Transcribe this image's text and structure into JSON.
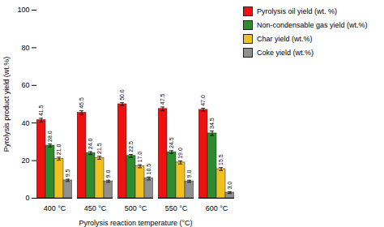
{
  "chart_data": {
    "type": "bar",
    "categories": [
      "400 °C",
      "450 °C",
      "500 °C",
      "550 °C",
      "600 °C"
    ],
    "series": [
      {
        "name": "Pyrolysis oil yield (wt. %)",
        "color": "#ee1111",
        "values": [
          41.5,
          45.5,
          50.0,
          47.5,
          47.0
        ],
        "value_labels": [
          "41.5",
          "45.5",
          "50.0",
          "47.5",
          "47.0"
        ],
        "errors": [
          1.0,
          1.0,
          0.8,
          1.0,
          0.8
        ]
      },
      {
        "name": "Non-condensable gas yield (wt.%)",
        "color": "#2e8b2e",
        "values": [
          28.0,
          24.0,
          22.5,
          24.5,
          34.5
        ],
        "value_labels": [
          "28.0",
          "24.0",
          "22.5",
          "24.5",
          "34.5"
        ],
        "errors": [
          0.8,
          0.8,
          0.8,
          0.8,
          1.2
        ]
      },
      {
        "name": "Char yield (wt.%)",
        "color": "#f0c020",
        "values": [
          21.0,
          21.5,
          17.0,
          19.0,
          15.5
        ],
        "value_labels": [
          "21.0",
          "21.5",
          "17.0",
          "19.0",
          "15.5"
        ],
        "errors": [
          0.8,
          0.8,
          0.8,
          0.8,
          0.8
        ]
      },
      {
        "name": "Coke yield (wt.%)",
        "color": "#909090",
        "values": [
          9.5,
          9.0,
          10.5,
          9.0,
          3.0
        ],
        "value_labels": [
          "9.5",
          "9.0",
          "10.5",
          "9.0",
          "3.0"
        ],
        "errors": [
          0.6,
          0.6,
          0.8,
          0.6,
          0.5
        ]
      }
    ],
    "xlabel": "Pyrolysis reaction temperature (°C)",
    "ylabel": "Pyrolysis product yield (wt.%)",
    "ylim": [
      0,
      100
    ],
    "yticks": [
      0,
      20,
      40,
      60,
      80,
      100
    ],
    "data_labels": true,
    "legend": "right"
  }
}
